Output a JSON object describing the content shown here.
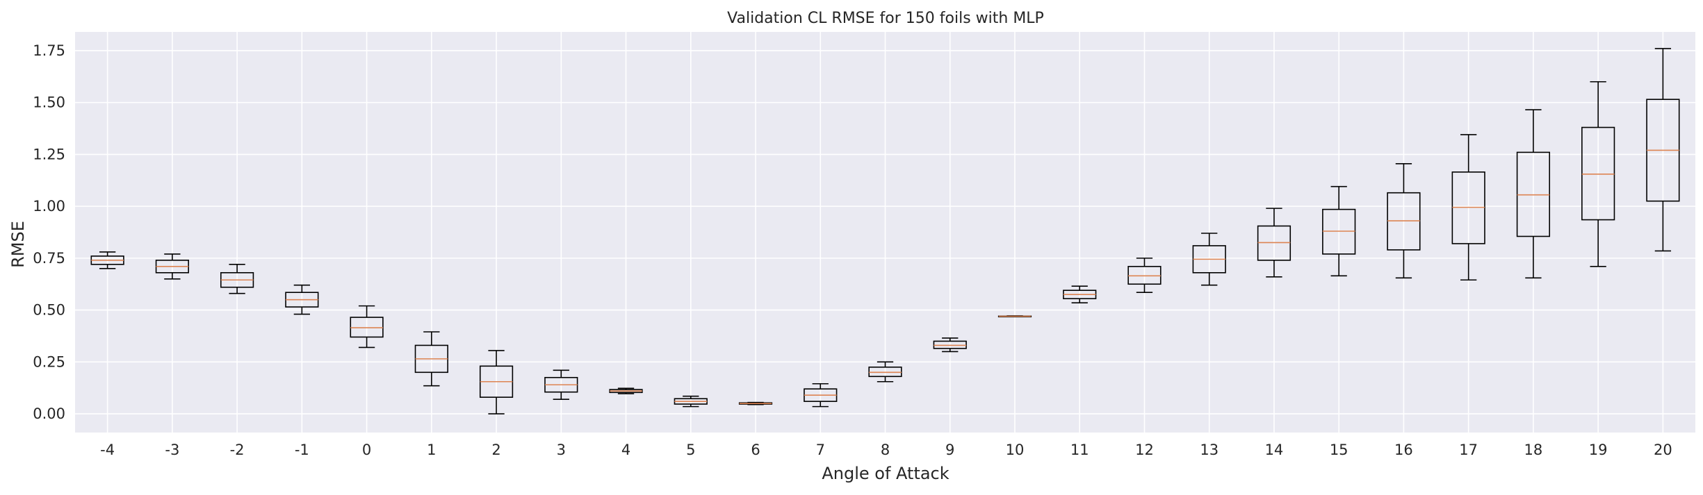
{
  "chart_data": {
    "type": "box",
    "title": "Validation CL RMSE for 150 foils with MLP",
    "xlabel": "Angle of Attack",
    "ylabel": "RMSE",
    "ylim": [
      -0.09,
      1.84
    ],
    "yticks": [
      0.0,
      0.25,
      0.5,
      0.75,
      1.0,
      1.25,
      1.5,
      1.75
    ],
    "ytick_labels": [
      "0.00",
      "0.25",
      "0.50",
      "0.75",
      "1.00",
      "1.25",
      "1.50",
      "1.75"
    ],
    "grid": true,
    "categories": [
      "-4",
      "-3",
      "-2",
      "-1",
      "0",
      "1",
      "2",
      "3",
      "4",
      "5",
      "6",
      "7",
      "8",
      "9",
      "10",
      "11",
      "12",
      "13",
      "14",
      "15",
      "16",
      "17",
      "18",
      "19",
      "20"
    ],
    "boxes": [
      {
        "whislo": 0.7,
        "q1": 0.72,
        "med": 0.74,
        "q3": 0.76,
        "whishi": 0.78
      },
      {
        "whislo": 0.65,
        "q1": 0.68,
        "med": 0.71,
        "q3": 0.74,
        "whishi": 0.77
      },
      {
        "whislo": 0.58,
        "q1": 0.61,
        "med": 0.645,
        "q3": 0.68,
        "whishi": 0.72
      },
      {
        "whislo": 0.48,
        "q1": 0.515,
        "med": 0.55,
        "q3": 0.585,
        "whishi": 0.62
      },
      {
        "whislo": 0.32,
        "q1": 0.37,
        "med": 0.415,
        "q3": 0.465,
        "whishi": 0.52
      },
      {
        "whislo": 0.135,
        "q1": 0.2,
        "med": 0.265,
        "q3": 0.33,
        "whishi": 0.395
      },
      {
        "whislo": 0.0,
        "q1": 0.08,
        "med": 0.155,
        "q3": 0.23,
        "whishi": 0.305
      },
      {
        "whislo": 0.07,
        "q1": 0.105,
        "med": 0.14,
        "q3": 0.175,
        "whishi": 0.21
      },
      {
        "whislo": 0.097,
        "q1": 0.103,
        "med": 0.11,
        "q3": 0.117,
        "whishi": 0.123
      },
      {
        "whislo": 0.035,
        "q1": 0.047,
        "med": 0.06,
        "q3": 0.073,
        "whishi": 0.085
      },
      {
        "whislo": 0.045,
        "q1": 0.047,
        "med": 0.05,
        "q3": 0.053,
        "whishi": 0.055
      },
      {
        "whislo": 0.035,
        "q1": 0.06,
        "med": 0.09,
        "q3": 0.12,
        "whishi": 0.145
      },
      {
        "whislo": 0.155,
        "q1": 0.18,
        "med": 0.2,
        "q3": 0.225,
        "whishi": 0.25
      },
      {
        "whislo": 0.3,
        "q1": 0.315,
        "med": 0.33,
        "q3": 0.35,
        "whishi": 0.365
      },
      {
        "whislo": 0.468,
        "q1": 0.469,
        "med": 0.47,
        "q3": 0.471,
        "whishi": 0.472
      },
      {
        "whislo": 0.535,
        "q1": 0.555,
        "med": 0.575,
        "q3": 0.595,
        "whishi": 0.615
      },
      {
        "whislo": 0.585,
        "q1": 0.625,
        "med": 0.665,
        "q3": 0.71,
        "whishi": 0.75
      },
      {
        "whislo": 0.62,
        "q1": 0.68,
        "med": 0.745,
        "q3": 0.81,
        "whishi": 0.87
      },
      {
        "whislo": 0.66,
        "q1": 0.74,
        "med": 0.825,
        "q3": 0.905,
        "whishi": 0.99
      },
      {
        "whislo": 0.665,
        "q1": 0.77,
        "med": 0.88,
        "q3": 0.985,
        "whishi": 1.095
      },
      {
        "whislo": 0.655,
        "q1": 0.79,
        "med": 0.93,
        "q3": 1.065,
        "whishi": 1.205
      },
      {
        "whislo": 0.645,
        "q1": 0.82,
        "med": 0.995,
        "q3": 1.165,
        "whishi": 1.345
      },
      {
        "whislo": 0.655,
        "q1": 0.855,
        "med": 1.055,
        "q3": 1.26,
        "whishi": 1.465
      },
      {
        "whislo": 0.71,
        "q1": 0.935,
        "med": 1.155,
        "q3": 1.38,
        "whishi": 1.6
      },
      {
        "whislo": 0.785,
        "q1": 1.025,
        "med": 1.27,
        "q3": 1.515,
        "whishi": 1.76
      }
    ],
    "colors": {
      "background": "#eaeaf2",
      "grid": "#ffffff",
      "box": "#000000",
      "median": "#dd8452",
      "text": "#262626"
    }
  }
}
